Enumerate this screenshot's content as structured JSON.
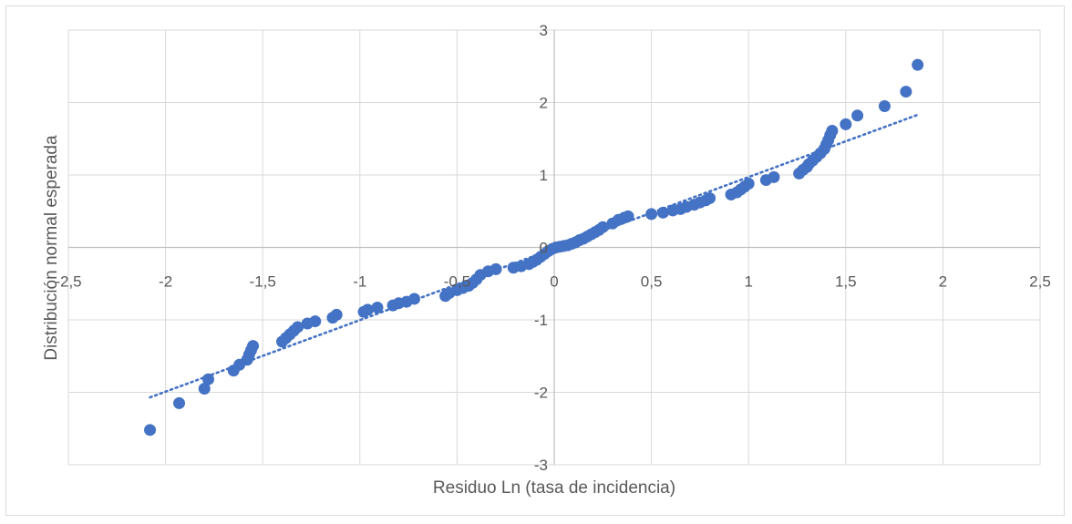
{
  "chart_data": {
    "type": "scatter",
    "xlabel": "Residuo Ln (tasa de incidencia)",
    "ylabel": "Distribución normal esperada",
    "xlim": [
      -2.5,
      2.5
    ],
    "ylim": [
      -3,
      3
    ],
    "x_ticks": [
      -2.5,
      -2,
      -1.5,
      -1,
      -0.5,
      0,
      0.5,
      1,
      1.5,
      2,
      2.5
    ],
    "x_tick_labels": [
      "-2,5",
      "-2",
      "-1,5",
      "-1",
      "-0,5",
      "0",
      "0,5",
      "1",
      "1,5",
      "2",
      "2,5"
    ],
    "y_ticks": [
      -3,
      -2,
      -1,
      0,
      1,
      2,
      3
    ],
    "y_tick_labels": [
      "-3",
      "-2",
      "-1",
      "0",
      "1",
      "2",
      "3"
    ],
    "grid": true,
    "marker_color": "#4472C4",
    "trendline": {
      "style": "dotted",
      "color": "#4472C4",
      "x": [
        -2.08,
        1.87
      ],
      "y": [
        -2.07,
        1.83
      ]
    },
    "points": [
      [
        -2.08,
        -2.52
      ],
      [
        -1.93,
        -2.15
      ],
      [
        -1.8,
        -1.95
      ],
      [
        -1.78,
        -1.82
      ],
      [
        -1.65,
        -1.7
      ],
      [
        -1.62,
        -1.62
      ],
      [
        -1.58,
        -1.55
      ],
      [
        -1.57,
        -1.48
      ],
      [
        -1.56,
        -1.42
      ],
      [
        -1.55,
        -1.36
      ],
      [
        -1.4,
        -1.3
      ],
      [
        -1.38,
        -1.25
      ],
      [
        -1.36,
        -1.2
      ],
      [
        -1.34,
        -1.15
      ],
      [
        -1.32,
        -1.1
      ],
      [
        -1.27,
        -1.05
      ],
      [
        -1.23,
        -1.02
      ],
      [
        -1.14,
        -0.97
      ],
      [
        -1.12,
        -0.93
      ],
      [
        -0.98,
        -0.89
      ],
      [
        -0.96,
        -0.86
      ],
      [
        -0.91,
        -0.83
      ],
      [
        -0.83,
        -0.8
      ],
      [
        -0.8,
        -0.77
      ],
      [
        -0.76,
        -0.75
      ],
      [
        -0.72,
        -0.71
      ],
      [
        -0.56,
        -0.67
      ],
      [
        -0.54,
        -0.63
      ],
      [
        -0.5,
        -0.59
      ],
      [
        -0.47,
        -0.56
      ],
      [
        -0.44,
        -0.53
      ],
      [
        -0.42,
        -0.49
      ],
      [
        -0.4,
        -0.44
      ],
      [
        -0.38,
        -0.38
      ],
      [
        -0.34,
        -0.33
      ],
      [
        -0.3,
        -0.3
      ],
      [
        -0.21,
        -0.28
      ],
      [
        -0.17,
        -0.26
      ],
      [
        -0.13,
        -0.23
      ],
      [
        -0.11,
        -0.2
      ],
      [
        -0.09,
        -0.17
      ],
      [
        -0.07,
        -0.13
      ],
      [
        -0.05,
        -0.09
      ],
      [
        -0.03,
        -0.05
      ],
      [
        -0.01,
        -0.02
      ],
      [
        0.01,
        0.0
      ],
      [
        0.03,
        0.01
      ],
      [
        0.05,
        0.02
      ],
      [
        0.07,
        0.03
      ],
      [
        0.09,
        0.05
      ],
      [
        0.11,
        0.07
      ],
      [
        0.13,
        0.1
      ],
      [
        0.15,
        0.12
      ],
      [
        0.17,
        0.15
      ],
      [
        0.19,
        0.18
      ],
      [
        0.21,
        0.21
      ],
      [
        0.23,
        0.24
      ],
      [
        0.25,
        0.28
      ],
      [
        0.3,
        0.33
      ],
      [
        0.33,
        0.38
      ],
      [
        0.36,
        0.41
      ],
      [
        0.38,
        0.43
      ],
      [
        0.5,
        0.46
      ],
      [
        0.56,
        0.48
      ],
      [
        0.61,
        0.51
      ],
      [
        0.65,
        0.53
      ],
      [
        0.68,
        0.56
      ],
      [
        0.72,
        0.59
      ],
      [
        0.75,
        0.62
      ],
      [
        0.78,
        0.65
      ],
      [
        0.8,
        0.68
      ],
      [
        0.91,
        0.73
      ],
      [
        0.94,
        0.76
      ],
      [
        0.96,
        0.8
      ],
      [
        0.98,
        0.84
      ],
      [
        1.0,
        0.88
      ],
      [
        1.09,
        0.93
      ],
      [
        1.13,
        0.97
      ],
      [
        1.26,
        1.02
      ],
      [
        1.28,
        1.07
      ],
      [
        1.3,
        1.11
      ],
      [
        1.31,
        1.15
      ],
      [
        1.33,
        1.2
      ],
      [
        1.35,
        1.25
      ],
      [
        1.37,
        1.3
      ],
      [
        1.39,
        1.36
      ],
      [
        1.4,
        1.42
      ],
      [
        1.41,
        1.48
      ],
      [
        1.42,
        1.55
      ],
      [
        1.43,
        1.61
      ],
      [
        1.5,
        1.7
      ],
      [
        1.56,
        1.82
      ],
      [
        1.7,
        1.95
      ],
      [
        1.81,
        2.15
      ],
      [
        1.87,
        2.52
      ]
    ]
  }
}
